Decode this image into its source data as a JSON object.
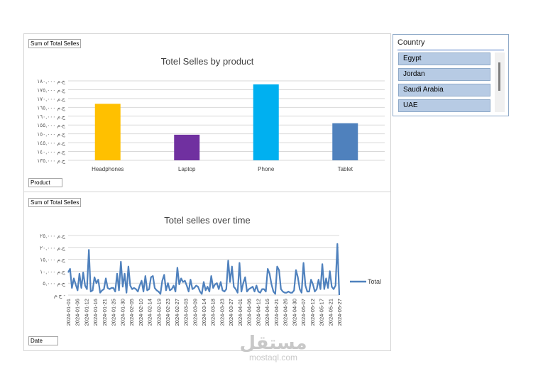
{
  "chart_data": [
    {
      "type": "bar",
      "title": "Totel Selles by product",
      "value_field": "Sum of Total Selles",
      "category_field": "Product",
      "categories": [
        "Headphones",
        "Laptop",
        "Phone",
        "Tablet"
      ],
      "values": [
        167000,
        149500,
        178000,
        156000
      ],
      "ylim": [
        135000,
        180000
      ],
      "yticks": [
        135000,
        140000,
        145000,
        150000,
        155000,
        160000,
        165000,
        170000,
        175000,
        180000
      ],
      "ytick_labels": [
        "ج.م ١٣٥,٠٠٠",
        "ج.م ١٤٠,٠٠٠",
        "ج.م ١٤٥,٠٠٠",
        "ج.م ١٥٠,٠٠٠",
        "ج.م ١٥٥,٠٠٠",
        "ج.م ١٦٠,٠٠٠",
        "ج.م ١٦٥,٠٠٠",
        "ج.م ١٧٠,٠٠٠",
        "ج.م ١٧٥,٠٠٠",
        "ج.م ١٨٠,٠٠٠"
      ],
      "colors": [
        "#ffc000",
        "#7030a0",
        "#00b0f0",
        "#4f81bd"
      ],
      "grid": true
    },
    {
      "type": "line",
      "title": "Totel selles over time",
      "value_field": "Sum of Total Selles",
      "category_field": "Date",
      "x_labels": [
        "2024-01-01",
        "2024-01-06",
        "2024-01-12",
        "2024-01-16",
        "2024-01-21",
        "2024-01-25",
        "2024-01-30",
        "2024-02-05",
        "2024-02-10",
        "2024-02-14",
        "2024-02-19",
        "2024-02-23",
        "2024-02-27",
        "2024-03-03",
        "2024-03-09",
        "2024-03-14",
        "2024-03-18",
        "2024-03-23",
        "2024-03-27",
        "2024-04-01",
        "2024-04-06",
        "2024-04-12",
        "2024-04-16",
        "2024-04-21",
        "2024-04-26",
        "2024-04-30",
        "2024-05-07",
        "2024-05-12",
        "2024-05-17",
        "2024-05-21",
        "2024-05-27"
      ],
      "series": [
        {
          "name": "Total",
          "color": "#4f81bd",
          "values": [
            9500,
            11000,
            3000,
            7000,
            4500,
            2000,
            9000,
            3000,
            9500,
            4000,
            2500,
            19000,
            1500,
            2000,
            7500,
            5000,
            6500,
            1000,
            2000,
            2500,
            7000,
            3000,
            2500,
            3000,
            3000,
            1500,
            9000,
            2000,
            14000,
            3500,
            9000,
            1000,
            12000,
            4000,
            2500,
            3000,
            2500,
            1500,
            4000,
            6000,
            1500,
            8000,
            2000,
            2500,
            7500,
            8000,
            3000,
            2000,
            1500,
            500,
            6000,
            8500,
            2000,
            5000,
            2000,
            2500,
            4000,
            1500,
            11500,
            4500,
            7000,
            5500,
            6000,
            4000,
            1500,
            6500,
            2500,
            3000,
            4000,
            3500,
            1500,
            500,
            5500,
            2000,
            3500,
            1500,
            8000,
            3000,
            4500,
            5000,
            2500,
            5500,
            2000,
            1500,
            2500,
            14500,
            5500,
            12000,
            3500,
            2500,
            1000,
            13500,
            1500,
            5000,
            7500,
            1500,
            2500,
            3000,
            3500,
            1500,
            4000,
            1500,
            1000,
            2500,
            2500,
            1500,
            11000,
            9000,
            4500,
            1500,
            500,
            12000,
            10500,
            2500,
            1500,
            1000,
            1000,
            1500,
            1000,
            1000,
            2000,
            10500,
            7500,
            2500,
            1000,
            13500,
            4000,
            1500,
            1500,
            6500,
            4500,
            1500,
            2500,
            6500,
            2500,
            13000,
            2500,
            7000,
            3000,
            10000,
            3500,
            2500,
            4000,
            21500,
            0
          ]
        }
      ],
      "ylim": [
        0,
        25000
      ],
      "yticks": [
        0,
        5000,
        10000,
        15000,
        20000,
        25000
      ],
      "ytick_labels": [
        "ج.م -",
        "ج.م ٥,٠٠٠",
        "ج.م ١٠,٠٠٠",
        "ج.م ١٥,٠٠٠",
        "ج.م ٢٠,٠٠٠",
        "ج.م ٢٥,٠٠٠"
      ],
      "legend_position": "right",
      "grid": true
    }
  ],
  "slicer": {
    "header": "Country",
    "items": [
      "Egypt",
      "Jordan",
      "Saudi Arabia",
      "UAE"
    ]
  },
  "watermark": {
    "logo": "مستقل",
    "url": "mostaql.com"
  }
}
